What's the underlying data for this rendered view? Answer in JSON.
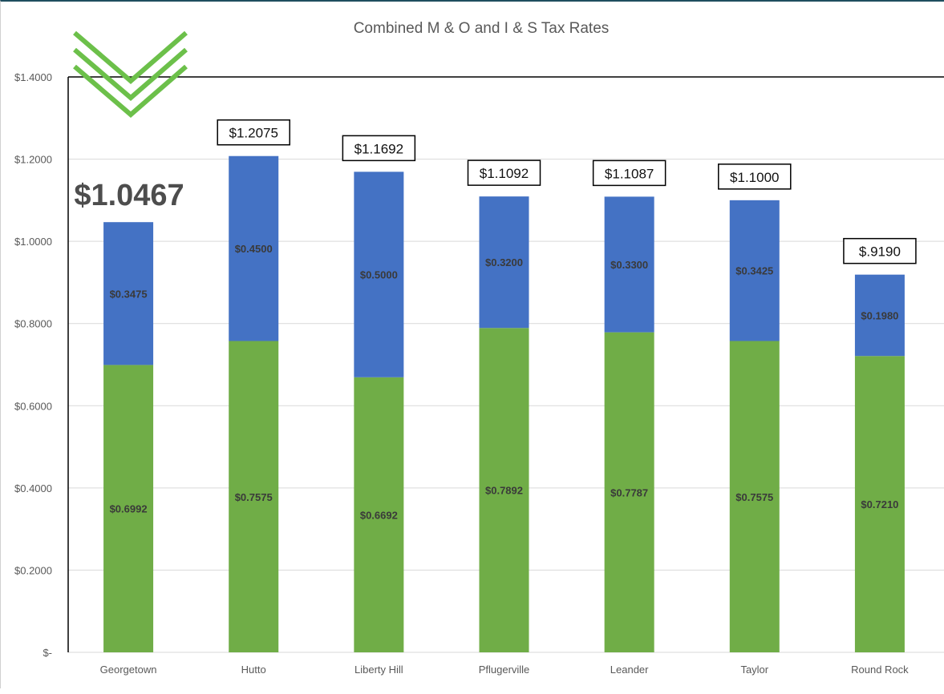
{
  "chart_data": {
    "type": "bar",
    "stacked": true,
    "title": "Combined M & O and I & S Tax Rates",
    "categories": [
      "Georgetown",
      "Hutto",
      "Liberty Hill",
      "Pflugerville",
      "Leander",
      "Taylor",
      "Round Rock"
    ],
    "series": [
      {
        "color": "#70ad47",
        "values": [
          0.6992,
          0.7575,
          0.6692,
          0.7892,
          0.7787,
          0.7575,
          0.721
        ],
        "labels": [
          "$0.6992",
          "$0.7575",
          "$0.6692",
          "$0.7892",
          "$0.7787",
          "$0.7575",
          "$0.7210"
        ]
      },
      {
        "color": "#4472c4",
        "values": [
          0.3475,
          0.45,
          0.5,
          0.32,
          0.33,
          0.3425,
          0.198
        ],
        "labels": [
          "$0.3475",
          "$0.4500",
          "$0.5000",
          "$0.3200",
          "$0.3300",
          "$0.3425",
          "$0.1980"
        ]
      }
    ],
    "totals": [
      1.0467,
      1.2075,
      1.1692,
      1.1092,
      1.1087,
      1.1,
      0.919
    ],
    "total_labels": [
      "$1.0467",
      "$1.2075",
      "$1.1692",
      "$1.1092",
      "$1.1087",
      "$1.1000",
      "$.9190"
    ],
    "highlight_index": 0,
    "ylim": [
      0,
      1.4
    ],
    "yticks": [
      0,
      0.2,
      0.4,
      0.6,
      0.8,
      1.0,
      1.2,
      1.4
    ],
    "ytick_labels": [
      "$-",
      "$0.2000",
      "$0.4000",
      "$0.6000",
      "$0.8000",
      "$1.0000",
      "$1.2000",
      "$1.4000"
    ],
    "grid": true,
    "legend": "none"
  },
  "colors": {
    "grid": "#d9d9d9",
    "axis_text": "#595959",
    "title_text": "#595959",
    "highlight_text": "#4d4d4d",
    "logo": "#6cc04a"
  },
  "decor": {
    "logo_icon": "triple-chevron-down-icon"
  }
}
